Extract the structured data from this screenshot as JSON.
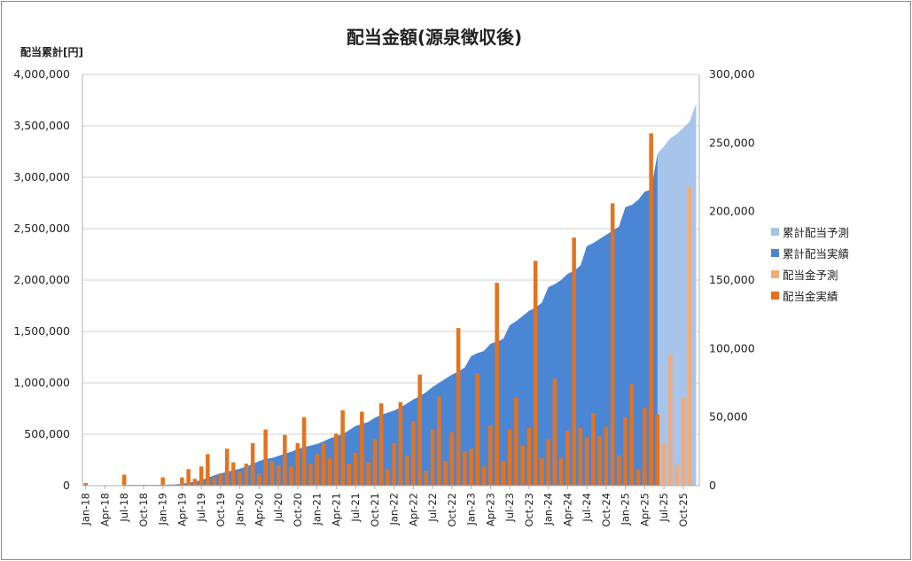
{
  "chart_data": {
    "type": "bar+area",
    "title": "配当金額(源泉徴収後)",
    "ylabel_left": "配当累計[円]",
    "ylim_left": [
      0,
      4000000
    ],
    "ylim_right": [
      0,
      300000
    ],
    "left_ticks": [
      "0",
      "500,000",
      "1,000,000",
      "1,500,000",
      "2,000,000",
      "2,500,000",
      "3,000,000",
      "3,500,000",
      "4,000,000"
    ],
    "right_ticks": [
      "0",
      "50,000",
      "100,000",
      "150,000",
      "200,000",
      "250,000",
      "300,000"
    ],
    "grid": true,
    "legend_position": "right",
    "x_tick_labels": [
      "Jan-18",
      "Apr-18",
      "Jul-18",
      "Oct-18",
      "Jan-19",
      "Apr-19",
      "Jul-19",
      "Oct-19",
      "Jan-20",
      "Apr-20",
      "Jul-20",
      "Oct-20",
      "Jan-21",
      "Apr-21",
      "Jul-21",
      "Oct-21",
      "Jan-22",
      "Apr-22",
      "Jul-22",
      "Oct-22",
      "Jan-23",
      "Apr-23",
      "Jul-23",
      "Oct-23",
      "Jan-24",
      "Apr-24",
      "Jul-24",
      "Oct-24",
      "Jan-25",
      "Apr-25",
      "Jul-25",
      "Oct-25"
    ],
    "x": [
      "Jan-18",
      "Feb-18",
      "Mar-18",
      "Apr-18",
      "May-18",
      "Jun-18",
      "Jul-18",
      "Aug-18",
      "Sep-18",
      "Oct-18",
      "Nov-18",
      "Dec-18",
      "Jan-19",
      "Feb-19",
      "Mar-19",
      "Apr-19",
      "May-19",
      "Jun-19",
      "Jul-19",
      "Aug-19",
      "Sep-19",
      "Oct-19",
      "Nov-19",
      "Dec-19",
      "Jan-20",
      "Feb-20",
      "Mar-20",
      "Apr-20",
      "May-20",
      "Jun-20",
      "Jul-20",
      "Aug-20",
      "Sep-20",
      "Oct-20",
      "Nov-20",
      "Dec-20",
      "Jan-21",
      "Feb-21",
      "Mar-21",
      "Apr-21",
      "May-21",
      "Jun-21",
      "Jul-21",
      "Aug-21",
      "Sep-21",
      "Oct-21",
      "Nov-21",
      "Dec-21",
      "Jan-22",
      "Feb-22",
      "Mar-22",
      "Apr-22",
      "May-22",
      "Jun-22",
      "Jul-22",
      "Aug-22",
      "Sep-22",
      "Oct-22",
      "Nov-22",
      "Dec-22",
      "Jan-23",
      "Feb-23",
      "Mar-23",
      "Apr-23",
      "May-23",
      "Jun-23",
      "Jul-23",
      "Aug-23",
      "Sep-23",
      "Oct-23",
      "Nov-23",
      "Dec-23",
      "Jan-24",
      "Feb-24",
      "Mar-24",
      "Apr-24",
      "May-24",
      "Jun-24",
      "Jul-24",
      "Aug-24",
      "Sep-24",
      "Oct-24",
      "Nov-24",
      "Dec-24",
      "Jan-25",
      "Feb-25",
      "Mar-25",
      "Apr-25",
      "May-25",
      "Jun-25",
      "Jul-25",
      "Aug-25",
      "Sep-25",
      "Oct-25",
      "Nov-25",
      "Dec-25"
    ],
    "series": [
      {
        "name": "累計配当予測",
        "type": "area",
        "axis": "left",
        "color": "#a7c4ea",
        "values": [
          null,
          null,
          null,
          null,
          null,
          null,
          null,
          null,
          null,
          null,
          null,
          null,
          null,
          null,
          null,
          null,
          null,
          null,
          null,
          null,
          null,
          null,
          null,
          null,
          null,
          null,
          null,
          null,
          null,
          null,
          null,
          null,
          null,
          null,
          null,
          null,
          null,
          null,
          null,
          null,
          null,
          null,
          null,
          null,
          null,
          null,
          null,
          null,
          null,
          null,
          null,
          null,
          null,
          null,
          null,
          null,
          null,
          null,
          null,
          null,
          null,
          null,
          null,
          null,
          null,
          null,
          null,
          null,
          null,
          null,
          null,
          null,
          null,
          null,
          null,
          null,
          null,
          null,
          null,
          null,
          null,
          null,
          null,
          null,
          null,
          null,
          null,
          null,
          null,
          3230000,
          3300000,
          3380000,
          3420000,
          3480000,
          3540000,
          3720000
        ]
      },
      {
        "name": "累計配当実績",
        "type": "area",
        "axis": "left",
        "color": "#4a86d4",
        "values": [
          1500,
          1500,
          1500,
          1500,
          1500,
          1500,
          8000,
          8000,
          8000,
          8000,
          8000,
          8000,
          9000,
          10000,
          12000,
          18000,
          28000,
          40000,
          55000,
          75000,
          100000,
          120000,
          135000,
          150000,
          165000,
          185000,
          210000,
          240000,
          260000,
          270000,
          290000,
          310000,
          330000,
          355000,
          375000,
          390000,
          405000,
          430000,
          460000,
          480000,
          500000,
          540000,
          580000,
          600000,
          620000,
          660000,
          690000,
          710000,
          730000,
          760000,
          800000,
          840000,
          870000,
          910000,
          960000,
          1000000,
          1040000,
          1080000,
          1110000,
          1150000,
          1260000,
          1290000,
          1310000,
          1380000,
          1400000,
          1430000,
          1560000,
          1600000,
          1650000,
          1700000,
          1730000,
          1780000,
          1930000,
          1960000,
          2000000,
          2060000,
          2090000,
          2140000,
          2330000,
          2360000,
          2400000,
          2440000,
          2480000,
          2520000,
          2710000,
          2730000,
          2780000,
          2860000,
          2880000,
          3230000,
          null,
          null,
          null,
          null,
          null,
          null
        ]
      },
      {
        "name": "配当金予測",
        "type": "bar",
        "axis": "right",
        "color": "#f2ab7d",
        "values": [
          null,
          null,
          null,
          null,
          null,
          null,
          null,
          null,
          null,
          null,
          null,
          null,
          null,
          null,
          null,
          null,
          null,
          null,
          null,
          null,
          null,
          null,
          null,
          null,
          null,
          null,
          null,
          null,
          null,
          null,
          null,
          null,
          null,
          null,
          null,
          null,
          null,
          null,
          null,
          null,
          null,
          null,
          null,
          null,
          null,
          null,
          null,
          null,
          null,
          null,
          null,
          null,
          null,
          null,
          null,
          null,
          null,
          null,
          null,
          null,
          null,
          null,
          null,
          null,
          null,
          null,
          null,
          null,
          null,
          null,
          null,
          null,
          null,
          null,
          null,
          null,
          null,
          null,
          null,
          null,
          null,
          null,
          null,
          null,
          null,
          null,
          null,
          null,
          null,
          null,
          31000,
          96000,
          15000,
          64000,
          218000,
          null
        ]
      },
      {
        "name": "配当金実績",
        "type": "bar",
        "axis": "right",
        "color": "#e5721d",
        "values": [
          2000,
          0,
          0,
          0,
          0,
          0,
          8000,
          0,
          0,
          0,
          0,
          0,
          6000,
          0,
          0,
          6000,
          12000,
          5000,
          14000,
          23000,
          6000,
          9000,
          27000,
          17000,
          10000,
          16000,
          31000,
          9000,
          41000,
          18000,
          15000,
          37000,
          14000,
          31000,
          50000,
          16000,
          23000,
          31000,
          20000,
          38000,
          55000,
          16000,
          24000,
          54000,
          17000,
          34000,
          60000,
          12000,
          31000,
          61000,
          22000,
          47000,
          81000,
          11000,
          41000,
          65000,
          18000,
          39000,
          115000,
          25000,
          27000,
          82000,
          14000,
          44000,
          148000,
          18000,
          41000,
          64000,
          29000,
          42000,
          164000,
          20000,
          34000,
          78000,
          20000,
          40000,
          181000,
          42000,
          35000,
          53000,
          36000,
          43000,
          206000,
          22000,
          50000,
          74000,
          12000,
          57000,
          257000,
          52000,
          null,
          null,
          null,
          null,
          null,
          null
        ]
      }
    ]
  }
}
